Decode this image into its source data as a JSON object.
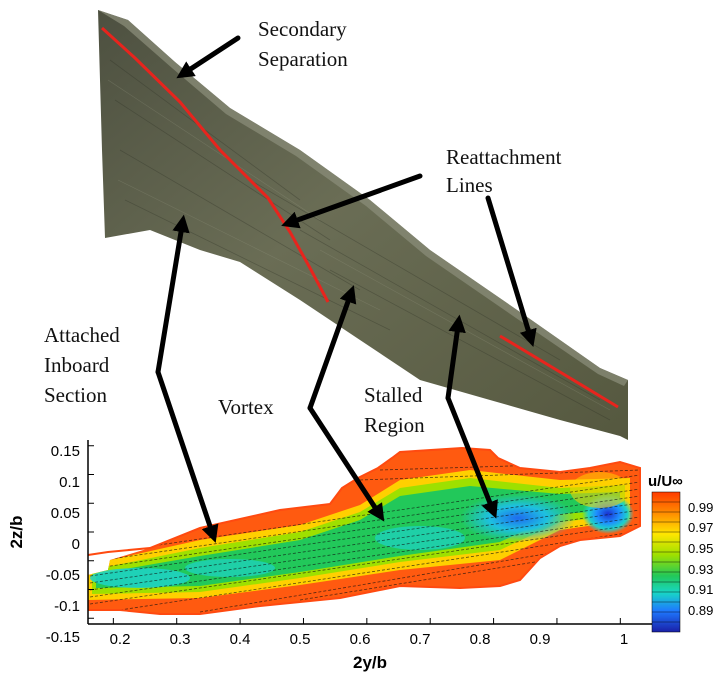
{
  "annotations": {
    "secondary_line1": "Secondary",
    "secondary_line2": "Separation",
    "reattach_line1": "Reattachment",
    "reattach_line2": "Lines",
    "attached_line1": "Attached",
    "attached_line2": "Inboard",
    "attached_line3": "Section",
    "vortex": "Vortex",
    "stalled_line1": "Stalled",
    "stalled_line2": "Region"
  },
  "colors": {
    "wing": "#5e6148",
    "wing_dark": "#3f4232",
    "highlight": "#e8241d",
    "arrow": "#000000"
  },
  "chart_data": {
    "type": "heatmap",
    "xlabel": "2y/b",
    "ylabel": "2z/b",
    "x_ticks": [
      "0.2",
      "0.3",
      "0.4",
      "0.5",
      "0.6",
      "0.7",
      "0.8",
      "0.9",
      "1"
    ],
    "y_ticks": [
      "0.15",
      "0.1",
      "0.05",
      "0",
      "-0.05",
      "-0.1",
      "-0.15"
    ],
    "xlim": [
      0.16,
      1.05
    ],
    "ylim": [
      -0.16,
      0.16
    ],
    "colorbar": {
      "title": "u/U∞",
      "levels": [
        "0.99",
        "0.97",
        "0.95",
        "0.93",
        "0.91",
        "0.89"
      ],
      "range": [
        0.88,
        1.0
      ]
    }
  }
}
